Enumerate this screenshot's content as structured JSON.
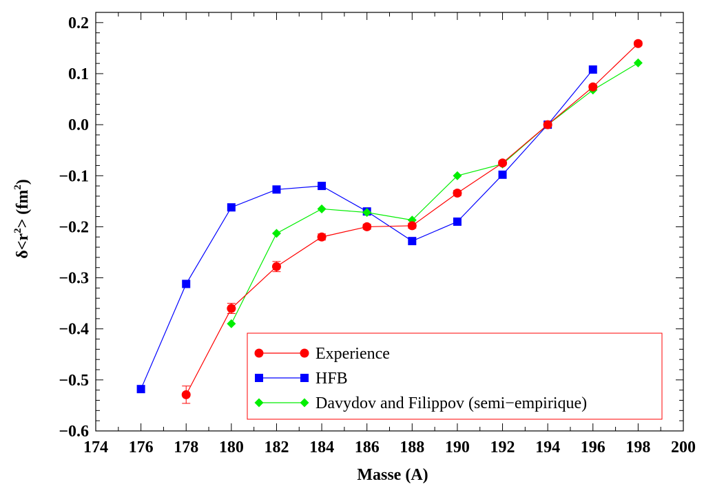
{
  "chart_data": {
    "type": "line",
    "xlabel": "Masse (A)",
    "ylabel": {
      "prefix": "δ<r",
      "sup1": "2",
      "middle": "> (fm",
      "sup2": "2",
      "suffix": ")"
    },
    "xlim": [
      174,
      200
    ],
    "ylim": [
      -0.6,
      0.22
    ],
    "x_ticks": [
      174,
      176,
      178,
      180,
      182,
      184,
      186,
      188,
      190,
      192,
      194,
      196,
      198,
      200
    ],
    "y_ticks": [
      -0.6,
      -0.5,
      -0.4,
      -0.3,
      -0.2,
      -0.1,
      0.0,
      0.1,
      0.2
    ],
    "y_tick_labels": [
      "−0.6",
      "−0.5",
      "−0.4",
      "−0.3",
      "−0.2",
      "−0.1",
      "0.0",
      "0.1",
      "0.2"
    ],
    "legend_position": "bottom-right",
    "series": [
      {
        "name": "Experience",
        "color": "#ff0000",
        "marker": "circle",
        "x": [
          178,
          180,
          182,
          184,
          186,
          188,
          190,
          192,
          194,
          196,
          198
        ],
        "y": [
          -0.529,
          -0.36,
          -0.278,
          -0.22,
          -0.2,
          -0.198,
          -0.134,
          -0.075,
          0.0,
          0.074,
          0.159
        ],
        "err": [
          0.017,
          0.01,
          0.01,
          0.006,
          0.005,
          0.005,
          0.005,
          0.004,
          0.003,
          0.004,
          0.004
        ]
      },
      {
        "name": "HFB",
        "color": "#0000ff",
        "marker": "square",
        "x": [
          176,
          178,
          180,
          182,
          184,
          186,
          188,
          190,
          192,
          194,
          196
        ],
        "y": [
          -0.518,
          -0.312,
          -0.162,
          -0.127,
          -0.12,
          -0.17,
          -0.228,
          -0.19,
          -0.098,
          0.0,
          0.108
        ]
      },
      {
        "name": "Davydov and Filippov (semi−empirique)",
        "color": "#00ee00",
        "marker": "diamond",
        "x": [
          180,
          182,
          184,
          186,
          188,
          190,
          192,
          194,
          196,
          198
        ],
        "y": [
          -0.39,
          -0.213,
          -0.165,
          -0.172,
          -0.187,
          -0.1,
          -0.077,
          0.0,
          0.068,
          0.121
        ]
      }
    ]
  }
}
